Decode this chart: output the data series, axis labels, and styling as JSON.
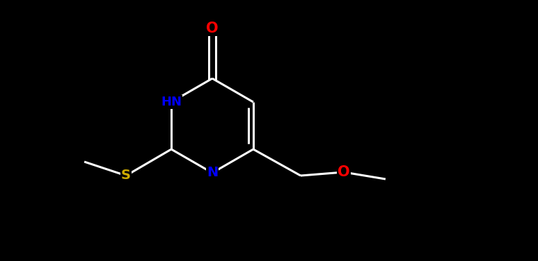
{
  "bg_color": "#000000",
  "bond_color": "#ffffff",
  "bond_width": 2.2,
  "atom_colors": {
    "O": "#ff0000",
    "N": "#0000ff",
    "S": "#ccaa00",
    "C": "#ffffff",
    "H": "#ffffff"
  },
  "font_size": 13,
  "figsize": [
    7.73,
    3.76
  ],
  "dpi": 100,
  "xlim": [
    0,
    7.73
  ],
  "ylim": [
    0,
    3.76
  ]
}
